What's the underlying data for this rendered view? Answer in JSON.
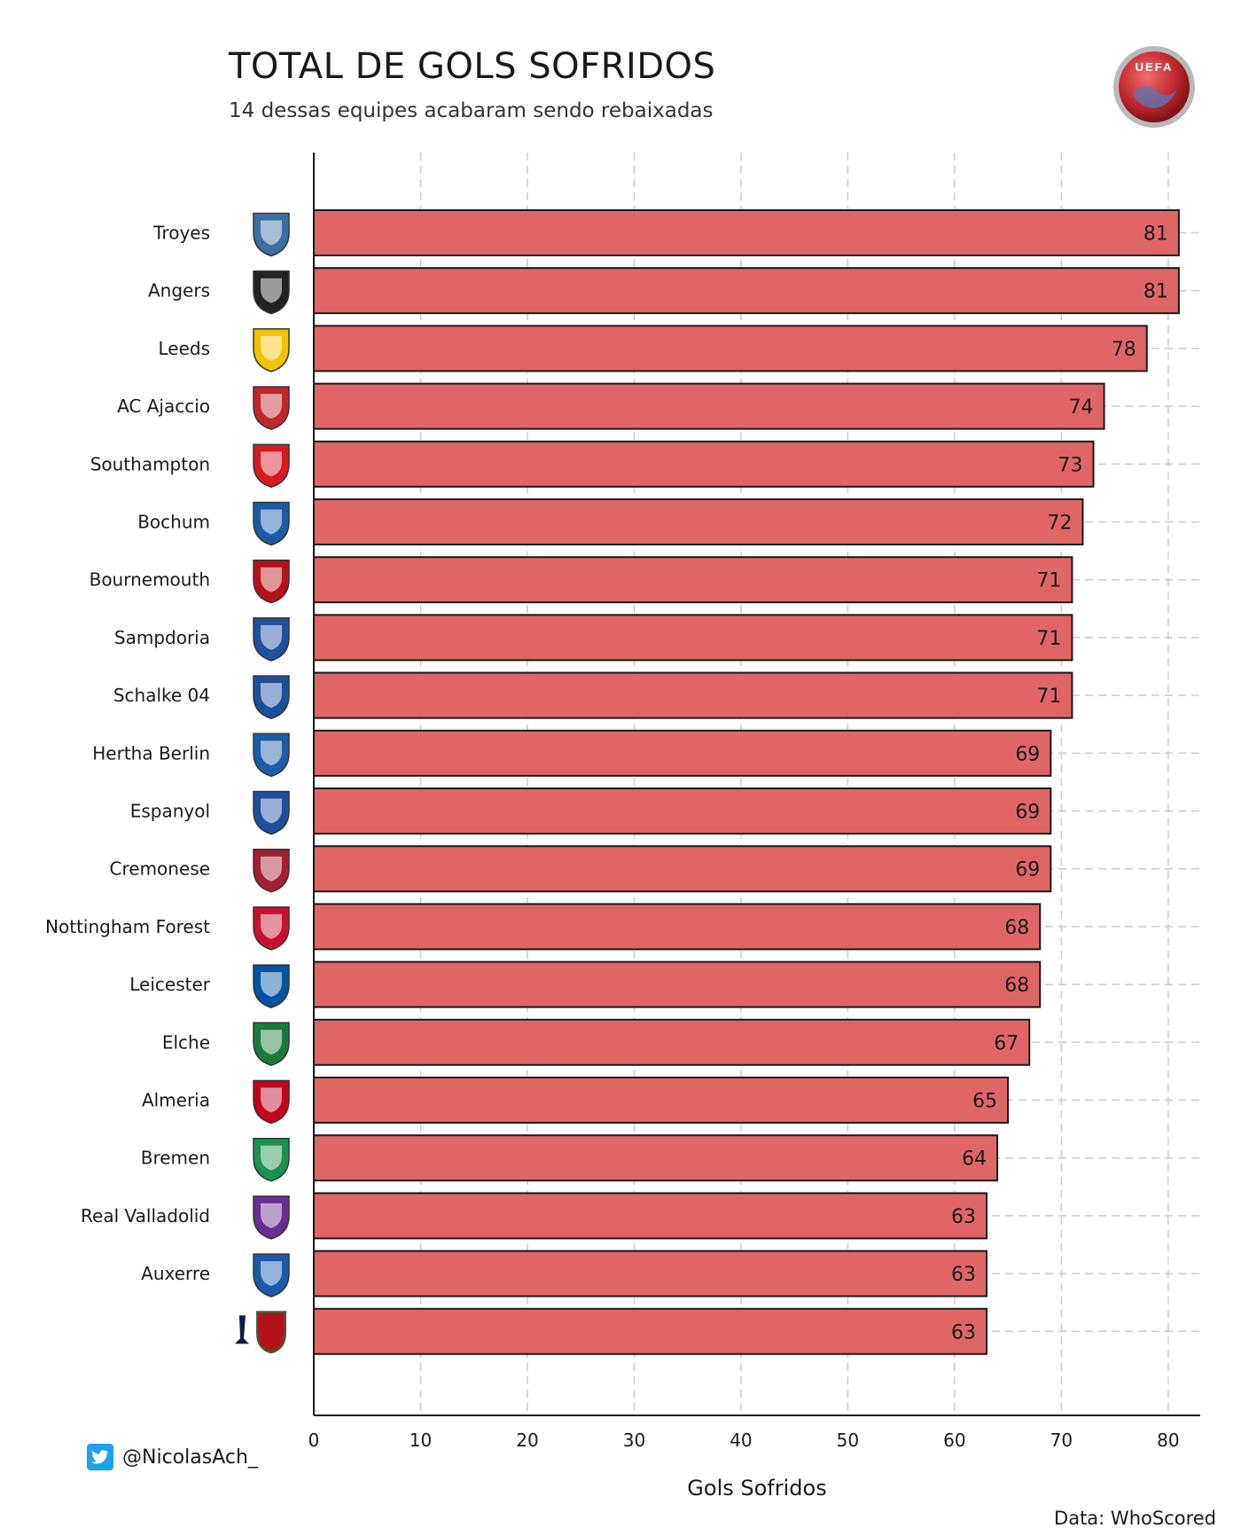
{
  "header": {
    "title": "TOTAL DE GOLS SOFRIDOS",
    "subtitle": "14 dessas equipes acabaram sendo rebaixadas",
    "logo_text": "UEFA"
  },
  "footer": {
    "handle": "@NicolasAch_",
    "source": "Data: WhoScored"
  },
  "colors": {
    "bar_fill": "#e06666",
    "bar_stroke": "#1a1a1a",
    "grid": "#cccccc",
    "twitter": "#1da1f2",
    "uefa_red": "#c0272d"
  },
  "chart_data": {
    "type": "bar",
    "orientation": "horizontal",
    "title": "TOTAL DE GOLS SOFRIDOS",
    "subtitle": "14 dessas equipes acabaram sendo rebaixadas",
    "xlabel": "Gols Sofridos",
    "ylabel": "",
    "xlim": [
      0,
      83
    ],
    "xticks": [
      0,
      10,
      20,
      30,
      40,
      50,
      60,
      70,
      80
    ],
    "grid": "vertical dashed",
    "categories": [
      "Troyes",
      "Angers",
      "Leeds",
      "AC Ajaccio",
      "Southampton",
      "Bochum",
      "Bournemouth",
      "Sampdoria",
      "Schalke 04",
      "Hertha Berlin",
      "Espanyol",
      "Cremonese",
      "Nottingham Forest",
      "Leicester",
      "Elche",
      "Almeria",
      "Bremen",
      "Real Valladolid",
      "Auxerre",
      ""
    ],
    "values": [
      81,
      81,
      78,
      74,
      73,
      72,
      71,
      71,
      71,
      69,
      69,
      69,
      68,
      68,
      67,
      65,
      64,
      63,
      63,
      63
    ],
    "crest_icons": [
      "troyes-crest",
      "angers-crest",
      "leeds-crest",
      "ajaccio-crest",
      "southampton-crest",
      "bochum-crest",
      "bournemouth-crest",
      "sampdoria-crest",
      "schalke-crest",
      "hertha-crest",
      "espanyol-crest",
      "cremonese-crest",
      "forest-crest",
      "leicester-crest",
      "elche-crest",
      "almeria-crest",
      "bremen-crest",
      "valladolid-crest",
      "auxerre-crest",
      "tottenham-augsburg-crests"
    ],
    "crest_colors": [
      "#3c6ea5",
      "#222222",
      "#f2c200",
      "#c0272d",
      "#d71920",
      "#1c5aa6",
      "#b5121b",
      "#1f4fa0",
      "#1a4f9c",
      "#1d5ca8",
      "#1d4fa0",
      "#a41e34",
      "#c8102e",
      "#0053a0",
      "#1a7a3c",
      "#c4001a",
      "#1d9053",
      "#6b2c91",
      "#1a5aa8",
      "#0b1c4a"
    ]
  }
}
